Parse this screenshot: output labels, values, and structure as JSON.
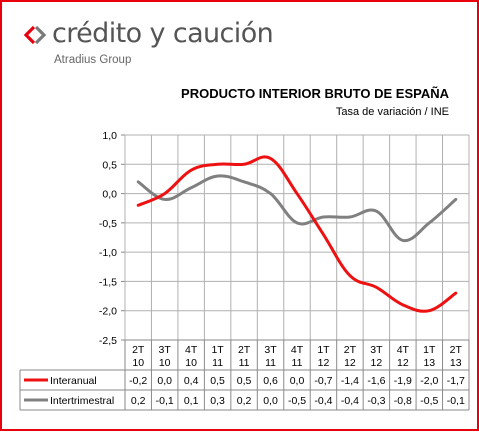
{
  "brand": {
    "name": "crédito y caución",
    "subtitle": "Atradius Group",
    "mark_colors": [
      "#e8000d",
      "#7a7a7a"
    ]
  },
  "chart_data": {
    "type": "line",
    "title": "PRODUCTO INTERIOR BRUTO DE ESPAÑA",
    "subtitle": "Tasa de variación / INE",
    "categories": [
      [
        "2T",
        "10"
      ],
      [
        "3T",
        "10"
      ],
      [
        "4T",
        "10"
      ],
      [
        "1T",
        "11"
      ],
      [
        "2T",
        "11"
      ],
      [
        "3T",
        "11"
      ],
      [
        "4T",
        "11"
      ],
      [
        "1T",
        "12"
      ],
      [
        "2T",
        "12"
      ],
      [
        "3T",
        "12"
      ],
      [
        "4T",
        "12"
      ],
      [
        "1T",
        "13"
      ],
      [
        "2T",
        "13"
      ]
    ],
    "y_ticks": [
      "1,0",
      "0,5",
      "0,0",
      "-0,5",
      "-1,0",
      "-1,5",
      "-2,0",
      "-2,5"
    ],
    "ylim": [
      -2.5,
      1.0
    ],
    "grid": true,
    "legend": "data-table-bottom",
    "series": [
      {
        "name": "Interanual",
        "color": "#ee1111",
        "values": [
          -0.2,
          0.0,
          0.4,
          0.5,
          0.5,
          0.6,
          0.0,
          -0.7,
          -1.4,
          -1.6,
          -1.9,
          -2.0,
          -1.7
        ],
        "labels": [
          "-0,2",
          "0,0",
          "0,4",
          "0,5",
          "0,5",
          "0,6",
          "0,0",
          "-0,7",
          "-1,4",
          "-1,6",
          "-1,9",
          "-2,0",
          "-1,7"
        ]
      },
      {
        "name": "Intertrimestral",
        "color": "#808080",
        "values": [
          0.2,
          -0.1,
          0.1,
          0.3,
          0.2,
          0.0,
          -0.5,
          -0.4,
          -0.4,
          -0.3,
          -0.8,
          -0.5,
          -0.1
        ],
        "labels": [
          "0,2",
          "-0,1",
          "0,1",
          "0,3",
          "0,2",
          "0,0",
          "-0,5",
          "-0,4",
          "-0,4",
          "-0,3",
          "-0,8",
          "-0,5",
          "-0,1"
        ]
      }
    ]
  }
}
